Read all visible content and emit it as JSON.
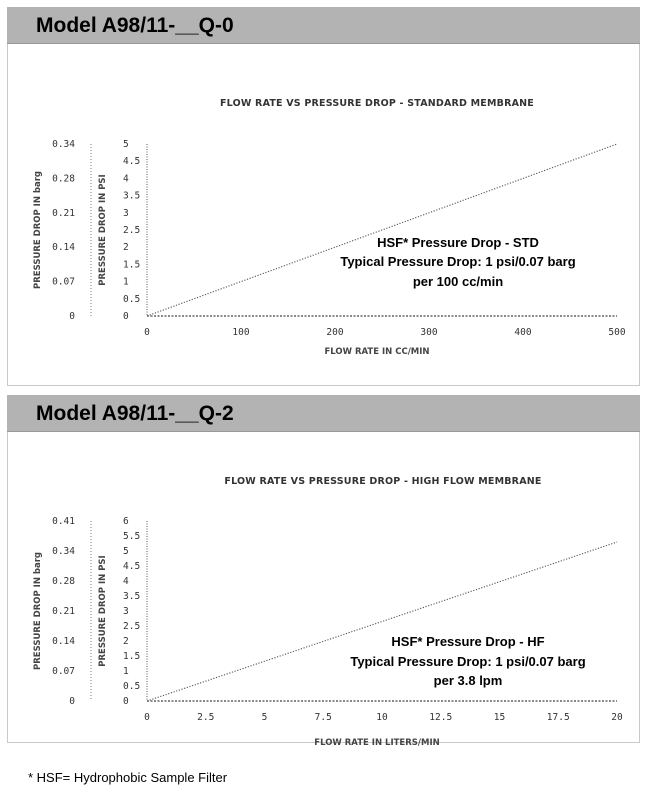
{
  "sections": [
    {
      "header": "Model A98/11-__Q-0"
    },
    {
      "header": "Model A98/11-__Q-2"
    }
  ],
  "footnote": "* HSF= Hydrophobic Sample Filter",
  "chart_data": [
    {
      "type": "line",
      "title": "FLOW RATE VS PRESSURE DROP - STANDARD MEMBRANE",
      "xlabel": "FLOW RATE IN CC/MIN",
      "ylabel": "PRESSURE DROP IN PSI",
      "ylabel2": "PRESSURE DROP IN barg",
      "xlim": [
        0,
        500
      ],
      "ylim": [
        0,
        5
      ],
      "x_ticks": [
        0,
        100,
        200,
        300,
        400,
        500
      ],
      "x_tick_labels": [
        "0",
        "100",
        "200",
        "300",
        "400",
        "500"
      ],
      "y_ticks": [
        0,
        0.5,
        1,
        1.5,
        2,
        2.5,
        3,
        3.5,
        4,
        4.5,
        5
      ],
      "y_tick_labels": [
        "0",
        "0.5",
        "1",
        "1.5",
        "2",
        "2.5",
        "3",
        "3.5",
        "4",
        "4.5",
        "5"
      ],
      "y2_ticks": [
        0,
        1,
        2,
        3,
        4,
        5
      ],
      "y2_tick_labels": [
        "0",
        "0.07",
        "0.14",
        "0.21",
        "0.28",
        "0.34"
      ],
      "x": [
        0,
        500
      ],
      "y": [
        0,
        5
      ],
      "line_style": "dotted",
      "annotation": [
        "HSF* Pressure Drop - STD",
        "Typical Pressure Drop: 1 psi/0.07 barg",
        "per 100 cc/min"
      ]
    },
    {
      "type": "line",
      "title": "FLOW RATE VS PRESSURE DROP - HIGH FLOW MEMBRANE",
      "xlabel": "FLOW RATE IN LITERS/MIN",
      "ylabel": "PRESSURE DROP IN PSI",
      "ylabel2": "PRESSURE DROP IN barg",
      "xlim": [
        0,
        20
      ],
      "ylim": [
        0,
        6
      ],
      "x_ticks": [
        0,
        2.5,
        5,
        7.5,
        10,
        12.5,
        15,
        17.5,
        20
      ],
      "x_tick_labels": [
        "0",
        "2.5",
        "5",
        "7.5",
        "10",
        "12.5",
        "15",
        "17.5",
        "20"
      ],
      "y_ticks": [
        0,
        0.5,
        1,
        1.5,
        2,
        2.5,
        3,
        3.5,
        4,
        4.5,
        5,
        5.5,
        6
      ],
      "y_tick_labels": [
        "0",
        "0.5",
        "1",
        "1.5",
        "2",
        "2.5",
        "3",
        "3.5",
        "4",
        "4.5",
        "5",
        "5.5",
        "6"
      ],
      "y2_ticks": [
        0,
        1,
        2,
        3,
        4,
        5,
        6
      ],
      "y2_tick_labels": [
        "0",
        "0.07",
        "0.14",
        "0.21",
        "0.28",
        "0.34",
        "0.41"
      ],
      "x": [
        0,
        20
      ],
      "y": [
        0,
        5.3
      ],
      "line_style": "dotted",
      "annotation": [
        "HSF* Pressure Drop - HF",
        "Typical Pressure Drop: 1 psi/0.07 barg",
        "per 3.8 lpm"
      ]
    }
  ]
}
